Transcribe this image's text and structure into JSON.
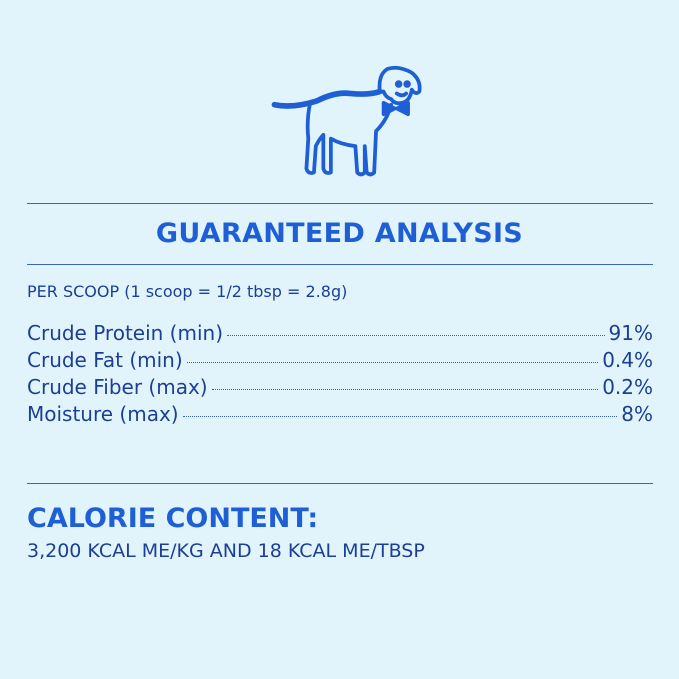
{
  "colors": {
    "background": "#e2f4fb",
    "heading": "#1f5fd6",
    "text": "#1c3f96"
  },
  "logo": {
    "icon": "dog-with-bowtie-icon"
  },
  "analysis": {
    "title": "GUARANTEED ANALYSIS",
    "serving": "PER SCOOP (1 scoop = 1/2 tbsp = 2.8g)",
    "rows": [
      {
        "label": "Crude Protein (min)",
        "value": "91%"
      },
      {
        "label": "Crude Fat (min)",
        "value": "0.4%"
      },
      {
        "label": "Crude Fiber (max)",
        "value": "0.2%"
      },
      {
        "label": "Moisture (max)",
        "value": "8%"
      }
    ]
  },
  "calories": {
    "title": "CALORIE CONTENT:",
    "text": "3,200 KCAL ME/KG AND 18 KCAL ME/TBSP"
  }
}
